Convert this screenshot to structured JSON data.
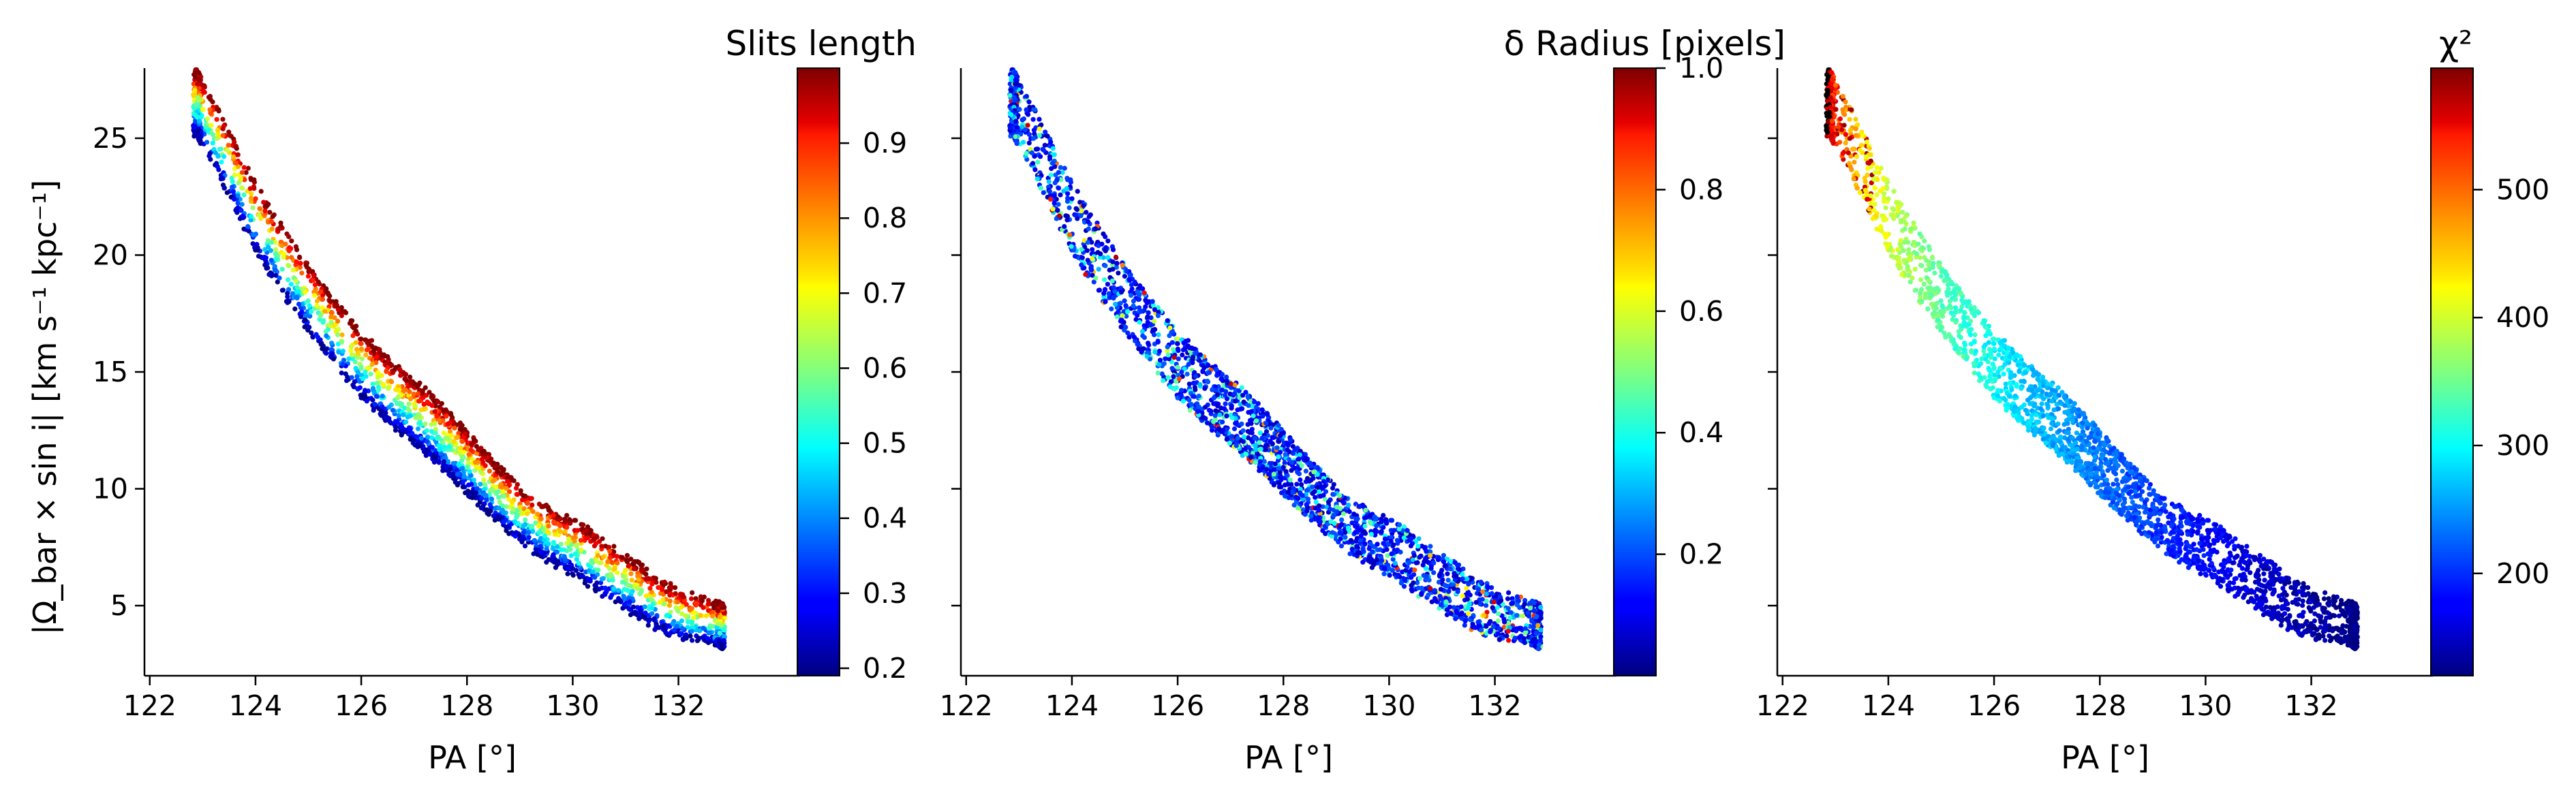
{
  "chart_data": [
    {
      "type": "scatter",
      "panel": "left",
      "xlabel": "PA [°]",
      "ylabel": "|Ω_bar × sin i|   [km s⁻¹ kpc⁻¹]",
      "xlim": [
        121.9,
        134.3
      ],
      "ylim": [
        2,
        28
      ],
      "xticks": [
        122,
        124,
        126,
        128,
        130,
        132
      ],
      "yticks": [
        5,
        10,
        15,
        20,
        25
      ],
      "grid": false,
      "colormap": "jet",
      "colorbar": {
        "title": "Slits length",
        "range": [
          0.19,
          1.0
        ],
        "ticks": [
          0.2,
          0.3,
          0.4,
          0.5,
          0.6,
          0.7,
          0.8,
          0.9
        ]
      },
      "color_trend": "high values (red) along the upper edge of the band, low values (blue/cyan) along the lower edge"
    },
    {
      "type": "scatter",
      "panel": "middle",
      "xlabel": "PA [°]",
      "xlim": [
        121.9,
        134.3
      ],
      "ylim": [
        2,
        28
      ],
      "xticks": [
        122,
        124,
        126,
        128,
        130,
        132
      ],
      "yticks": [
        5,
        10,
        15,
        20,
        25
      ],
      "grid": false,
      "colormap": "jet",
      "colorbar": {
        "title": "δ Radius [pixels]",
        "range": [
          0.0,
          1.0
        ],
        "ticks": [
          0.2,
          0.4,
          0.6,
          0.8,
          1.0
        ]
      },
      "color_trend": "mostly low values (dark blue) with scattered cyan and occasional yellow/red points"
    },
    {
      "type": "scatter",
      "panel": "right",
      "xlabel": "PA [°]",
      "xlim": [
        121.9,
        134.3
      ],
      "ylim": [
        2,
        28
      ],
      "xticks": [
        122,
        124,
        126,
        128,
        130,
        132
      ],
      "yticks": [
        5,
        10,
        15,
        20,
        25
      ],
      "grid": false,
      "colormap": "jet",
      "colorbar": {
        "title": "χ²",
        "range": [
          120,
          595
        ],
        "ticks": [
          200,
          300,
          400,
          500
        ]
      },
      "color_trend": "values decrease with increasing PA: green/cyan at low PA to dark blue at high PA"
    }
  ],
  "shared_band": {
    "x": [
      122.9,
      123.5,
      124,
      124.5,
      125,
      125.5,
      126,
      126.5,
      127,
      127.5,
      128,
      128.5,
      129,
      129.5,
      130,
      130.5,
      131,
      131.5,
      132,
      132.8
    ],
    "y_upper": [
      27.8,
      25.3,
      23.0,
      21.2,
      19.5,
      18.0,
      16.7,
      15.5,
      14.6,
      13.6,
      12.4,
      11.1,
      10.0,
      9.2,
      8.6,
      7.9,
      7.1,
      6.3,
      5.6,
      5.0
    ],
    "y_lower": [
      25.2,
      22.6,
      20.2,
      18.4,
      16.8,
      15.3,
      14.0,
      12.9,
      12.0,
      11.0,
      9.9,
      8.8,
      7.8,
      7.0,
      6.4,
      5.6,
      4.9,
      4.2,
      3.7,
      3.3
    ]
  }
}
